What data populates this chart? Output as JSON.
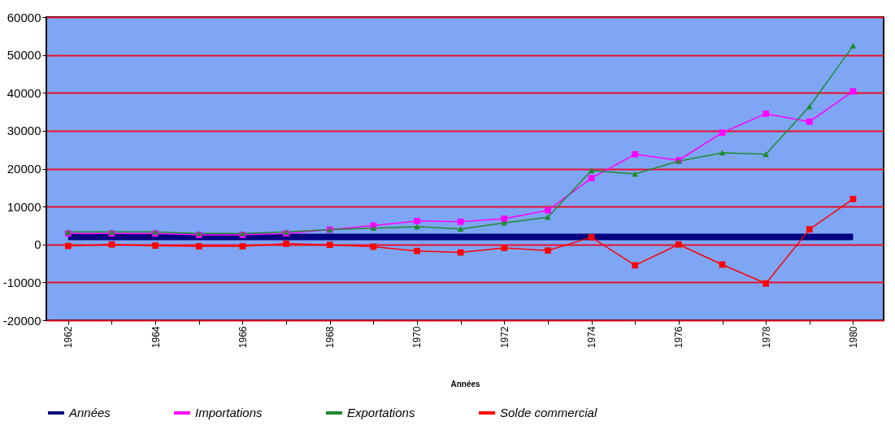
{
  "chart_data": {
    "type": "line",
    "xlabel": "Années",
    "categories": [
      "1962",
      null,
      "1964",
      null,
      "1966",
      null,
      "1968",
      null,
      "1970",
      null,
      "1972",
      null,
      "1974",
      null,
      "1976",
      null,
      "1978",
      null,
      "1980"
    ],
    "series": [
      {
        "name": "Années",
        "color": "#000080",
        "marker": "none",
        "values": [
          2000,
          2000,
          2000,
          2000,
          2000,
          2000,
          2000,
          2000,
          2000,
          2000,
          2000,
          2000,
          2000,
          2000,
          2000,
          2000,
          2000,
          2000,
          2000
        ]
      },
      {
        "name": "Importations",
        "color": "#ff00ff",
        "marker": "square",
        "values": [
          2900,
          2900,
          2900,
          2500,
          2500,
          2900,
          3900,
          5000,
          6200,
          6000,
          6800,
          9000,
          17500,
          23800,
          22200,
          29500,
          34500,
          32400,
          40400
        ]
      },
      {
        "name": "Exportations",
        "color": "#1e8a2e",
        "marker": "triangle",
        "values": [
          3300,
          3300,
          3300,
          2900,
          2900,
          3300,
          3900,
          4300,
          4700,
          4100,
          5700,
          7200,
          19500,
          18600,
          22000,
          24200,
          23800,
          36400,
          52400
        ]
      },
      {
        "name": "Solde commercial",
        "color": "#ff0000",
        "marker": "square",
        "values": [
          -400,
          0,
          -300,
          -500,
          -500,
          200,
          -100,
          -600,
          -1700,
          -2100,
          -900,
          -1600,
          1900,
          -5500,
          0,
          -5300,
          -10300,
          4000,
          12000
        ]
      }
    ],
    "ylim": [
      -20000,
      60000
    ],
    "yticks": [
      -20000,
      -10000,
      0,
      10000,
      20000,
      30000,
      40000,
      50000,
      60000
    ],
    "grid": "y",
    "legend": "bottom"
  }
}
